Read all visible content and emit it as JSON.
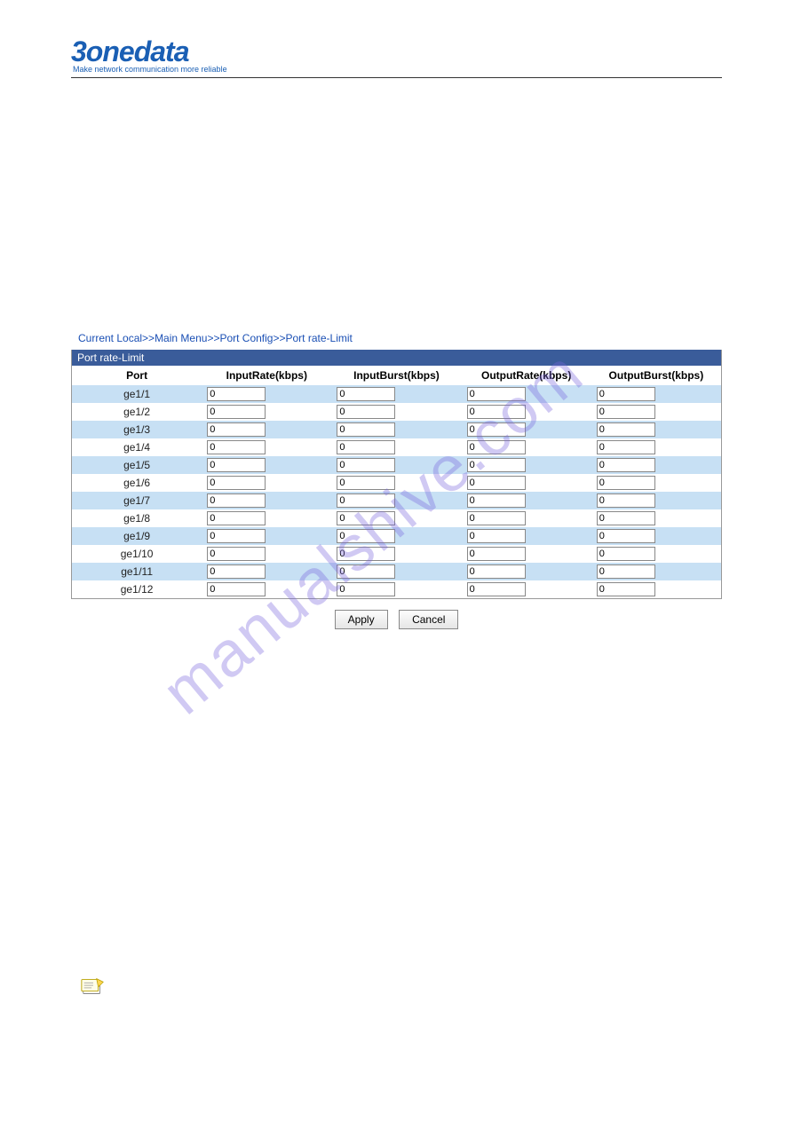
{
  "logo": {
    "brand": "3onedata",
    "tagline": "Make network communication more reliable"
  },
  "breadcrumb": {
    "parts": [
      "Current Local",
      "Main Menu",
      "Port Config",
      "Port rate-Limit"
    ],
    "separator": ">>"
  },
  "panel": {
    "title": "Port rate-Limit",
    "columns": [
      "Port",
      "InputRate(kbps)",
      "InputBurst(kbps)",
      "OutputRate(kbps)",
      "OutputBurst(kbps)"
    ],
    "rows": [
      {
        "port": "ge1/1",
        "inputRate": "0",
        "inputBurst": "0",
        "outputRate": "0",
        "outputBurst": "0"
      },
      {
        "port": "ge1/2",
        "inputRate": "0",
        "inputBurst": "0",
        "outputRate": "0",
        "outputBurst": "0"
      },
      {
        "port": "ge1/3",
        "inputRate": "0",
        "inputBurst": "0",
        "outputRate": "0",
        "outputBurst": "0"
      },
      {
        "port": "ge1/4",
        "inputRate": "0",
        "inputBurst": "0",
        "outputRate": "0",
        "outputBurst": "0"
      },
      {
        "port": "ge1/5",
        "inputRate": "0",
        "inputBurst": "0",
        "outputRate": "0",
        "outputBurst": "0"
      },
      {
        "port": "ge1/6",
        "inputRate": "0",
        "inputBurst": "0",
        "outputRate": "0",
        "outputBurst": "0"
      },
      {
        "port": "ge1/7",
        "inputRate": "0",
        "inputBurst": "0",
        "outputRate": "0",
        "outputBurst": "0"
      },
      {
        "port": "ge1/8",
        "inputRate": "0",
        "inputBurst": "0",
        "outputRate": "0",
        "outputBurst": "0"
      },
      {
        "port": "ge1/9",
        "inputRate": "0",
        "inputBurst": "0",
        "outputRate": "0",
        "outputBurst": "0"
      },
      {
        "port": "ge1/10",
        "inputRate": "0",
        "inputBurst": "0",
        "outputRate": "0",
        "outputBurst": "0"
      },
      {
        "port": "ge1/11",
        "inputRate": "0",
        "inputBurst": "0",
        "outputRate": "0",
        "outputBurst": "0"
      },
      {
        "port": "ge1/12",
        "inputRate": "0",
        "inputBurst": "0",
        "outputRate": "0",
        "outputBurst": "0"
      }
    ]
  },
  "buttons": {
    "apply": "Apply",
    "cancel": "Cancel"
  },
  "watermark": "manualshive.com",
  "colors": {
    "brand": "#1a5fb4",
    "panel_header_bg": "#3a5c9a",
    "row_odd_bg": "#c7e0f4",
    "row_even_bg": "#ffffff",
    "watermark": "rgba(120,100,220,0.35)"
  }
}
